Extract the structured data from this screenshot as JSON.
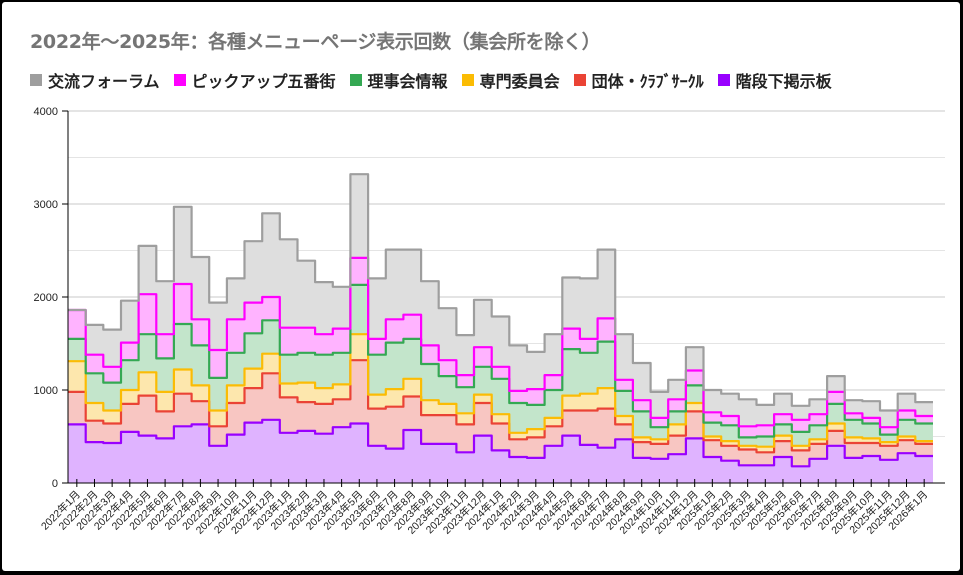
{
  "chart_data": {
    "type": "area",
    "stacked": true,
    "step": true,
    "title": "2022年～2025年：各種メニューページ表示回数（集会所を除く）",
    "xlabel": "",
    "ylabel": "",
    "ylim": [
      0,
      4000
    ],
    "yticks": [
      "0",
      "1000",
      "2000",
      "3000",
      "4000"
    ],
    "grid": true,
    "legend_position": "top",
    "categories": [
      "2022年1月",
      "2022年2月",
      "2022年3月",
      "2022年4月",
      "2022年5月",
      "2022年6月",
      "2022年7月",
      "2022年8月",
      "2022年9月",
      "2022年10月",
      "2022年11月",
      "2022年12月",
      "2023年1月",
      "2023年2月",
      "2023年3月",
      "2023年4月",
      "2023年5月",
      "2023年6月",
      "2023年7月",
      "2023年8月",
      "2023年9月",
      "2023年10月",
      "2023年11月",
      "2023年12月",
      "2024年1月",
      "2024年2月",
      "2024年3月",
      "2024年4月",
      "2024年5月",
      "2024年6月",
      "2024年7月",
      "2024年8月",
      "2024年9月",
      "2024年10月",
      "2024年11月",
      "2024年12月",
      "2025年1月",
      "2025年2月",
      "2025年3月",
      "2025年4月",
      "2025年5月",
      "2025年6月",
      "2025年7月",
      "2025年8月",
      "2025年9月",
      "2025年10月",
      "2025年11月",
      "2025年12月",
      "2026年1月"
    ],
    "series": [
      {
        "name": "階段下掲示板",
        "color": "#9900ff",
        "fill": "#dfb3ff",
        "values": [
          630,
          440,
          430,
          550,
          510,
          480,
          610,
          630,
          400,
          520,
          650,
          680,
          540,
          560,
          530,
          600,
          640,
          400,
          370,
          570,
          420,
          420,
          330,
          510,
          350,
          280,
          270,
          400,
          510,
          410,
          380,
          470,
          270,
          260,
          310,
          480,
          280,
          240,
          190,
          190,
          280,
          180,
          260,
          400,
          270,
          290,
          250,
          320,
          290
        ]
      },
      {
        "name": "団体・ｸﾗﾌﾞｻｰｸﾙ",
        "color": "#ea4335",
        "fill": "#f8c6c2",
        "values": [
          350,
          230,
          210,
          300,
          430,
          290,
          350,
          250,
          210,
          340,
          370,
          500,
          380,
          310,
          320,
          300,
          680,
          400,
          450,
          360,
          310,
          310,
          300,
          350,
          290,
          190,
          220,
          210,
          270,
          370,
          420,
          160,
          170,
          160,
          200,
          290,
          180,
          160,
          170,
          140,
          170,
          170,
          160,
          160,
          160,
          140,
          150,
          140,
          130
        ]
      },
      {
        "name": "専門委員会",
        "color": "#fbbc04",
        "fill": "#fde7ad",
        "values": [
          330,
          190,
          140,
          150,
          250,
          210,
          260,
          170,
          170,
          190,
          210,
          210,
          150,
          210,
          170,
          160,
          280,
          150,
          190,
          190,
          160,
          120,
          120,
          90,
          100,
          70,
          90,
          90,
          160,
          180,
          220,
          90,
          50,
          50,
          120,
          90,
          40,
          50,
          40,
          60,
          60,
          50,
          50,
          80,
          60,
          50,
          40,
          40,
          30
        ]
      },
      {
        "name": "理事会情報",
        "color": "#34a853",
        "fill": "#c3e5cb",
        "values": [
          240,
          320,
          300,
          320,
          410,
          360,
          490,
          430,
          350,
          350,
          380,
          360,
          310,
          320,
          360,
          340,
          530,
          430,
          500,
          430,
          390,
          300,
          280,
          300,
          380,
          320,
          260,
          300,
          500,
          440,
          500,
          270,
          280,
          130,
          140,
          190,
          150,
          170,
          90,
          110,
          120,
          150,
          150,
          210,
          190,
          160,
          80,
          180,
          190
        ]
      },
      {
        "name": "ピックアップ五番街",
        "color": "#ff00ff",
        "fill": "#ffb3ff",
        "values": [
          310,
          200,
          170,
          190,
          430,
          260,
          430,
          280,
          300,
          360,
          330,
          250,
          290,
          270,
          220,
          260,
          290,
          170,
          250,
          260,
          200,
          170,
          130,
          210,
          130,
          130,
          170,
          160,
          220,
          150,
          250,
          120,
          120,
          100,
          130,
          160,
          110,
          100,
          120,
          120,
          110,
          130,
          120,
          130,
          70,
          60,
          80,
          100,
          80
        ]
      },
      {
        "name": "交流フォーラム",
        "color": "#9e9e9e",
        "fill": "#dedede",
        "values": [
          0,
          320,
          400,
          450,
          520,
          570,
          830,
          670,
          510,
          440,
          660,
          900,
          950,
          720,
          560,
          450,
          900,
          650,
          750,
          700,
          690,
          560,
          430,
          510,
          540,
          490,
          400,
          440,
          550,
          650,
          740,
          490,
          400,
          280,
          210,
          250,
          240,
          240,
          290,
          220,
          220,
          150,
          160,
          170,
          140,
          180,
          180,
          180,
          150
        ]
      }
    ]
  }
}
